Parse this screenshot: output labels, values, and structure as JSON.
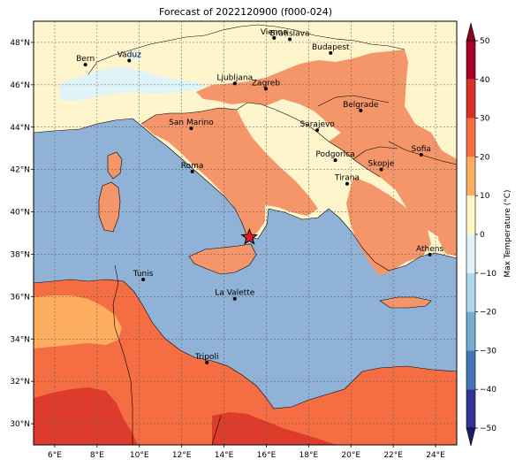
{
  "title": "Forecast of 2022120900 (f000-024)",
  "map": {
    "lon_range": [
      5,
      25
    ],
    "lat_range": [
      29,
      49
    ],
    "lon_ticks": [
      {
        "value": 6,
        "label": "6°E"
      },
      {
        "value": 8,
        "label": "8°E"
      },
      {
        "value": 10,
        "label": "10°E"
      },
      {
        "value": 12,
        "label": "12°E"
      },
      {
        "value": 14,
        "label": "14°E"
      },
      {
        "value": 16,
        "label": "16°E"
      },
      {
        "value": 18,
        "label": "18°E"
      },
      {
        "value": 20,
        "label": "20°E"
      },
      {
        "value": 22,
        "label": "22°E"
      },
      {
        "value": 24,
        "label": "24°E"
      }
    ],
    "lat_ticks": [
      {
        "value": 48,
        "label": "48°N"
      },
      {
        "value": 46,
        "label": "46°N"
      },
      {
        "value": 44,
        "label": "44°N"
      },
      {
        "value": 42,
        "label": "42°N"
      },
      {
        "value": 40,
        "label": "40°N"
      },
      {
        "value": 38,
        "label": "38°N"
      },
      {
        "value": 36,
        "label": "36°N"
      },
      {
        "value": 34,
        "label": "34°N"
      },
      {
        "value": 32,
        "label": "32°N"
      },
      {
        "value": 30,
        "label": "30°N"
      }
    ],
    "grid": true,
    "marker": {
      "symbol": "star",
      "lon": 15.2,
      "lat": 38.8,
      "color": "#e02020"
    },
    "cities": [
      {
        "name": "Bern",
        "lon": 7.45,
        "lat": 46.95
      },
      {
        "name": "Vaduz",
        "lon": 9.52,
        "lat": 47.14
      },
      {
        "name": "Vienna",
        "lon": 16.37,
        "lat": 48.21
      },
      {
        "name": "Bratislava",
        "lon": 17.11,
        "lat": 48.15
      },
      {
        "name": "Budapest",
        "lon": 19.04,
        "lat": 47.5
      },
      {
        "name": "Ljubljana",
        "lon": 14.51,
        "lat": 46.06
      },
      {
        "name": "Zagreb",
        "lon": 15.98,
        "lat": 45.81
      },
      {
        "name": "Belgrade",
        "lon": 20.46,
        "lat": 44.79
      },
      {
        "name": "San Marino",
        "lon": 12.45,
        "lat": 43.94
      },
      {
        "name": "Sarajevo",
        "lon": 18.41,
        "lat": 43.86
      },
      {
        "name": "Sofia",
        "lon": 23.32,
        "lat": 42.7
      },
      {
        "name": "Podgorica",
        "lon": 19.26,
        "lat": 42.44
      },
      {
        "name": "Skopje",
        "lon": 21.43,
        "lat": 42.0
      },
      {
        "name": "Roma",
        "lon": 12.5,
        "lat": 41.9
      },
      {
        "name": "Tirana",
        "lon": 19.82,
        "lat": 41.33
      },
      {
        "name": "Athens",
        "lon": 23.73,
        "lat": 37.98
      },
      {
        "name": "Tunis",
        "lon": 10.18,
        "lat": 36.81
      },
      {
        "name": "La Valette",
        "lon": 14.51,
        "lat": 35.9
      },
      {
        "name": "Tripoli",
        "lon": 13.19,
        "lat": 32.89
      }
    ]
  },
  "colorbar": {
    "label": "Max Temperature (°C)",
    "ticks": [
      {
        "value": 50,
        "label": "50"
      },
      {
        "value": 40,
        "label": "40"
      },
      {
        "value": 30,
        "label": "30"
      },
      {
        "value": 20,
        "label": "20"
      },
      {
        "value": 10,
        "label": "10"
      },
      {
        "value": 0,
        "label": "0"
      },
      {
        "value": -10,
        "label": "−10"
      },
      {
        "value": -20,
        "label": "−20"
      },
      {
        "value": -30,
        "label": "−30"
      },
      {
        "value": -40,
        "label": "−40"
      },
      {
        "value": -50,
        "label": "−50"
      }
    ],
    "bands": [
      {
        "from": 40,
        "to": 50,
        "color": "#a50026"
      },
      {
        "from": 30,
        "to": 40,
        "color": "#d73027"
      },
      {
        "from": 20,
        "to": 30,
        "color": "#f46d43"
      },
      {
        "from": 10,
        "to": 20,
        "color": "#fdae61"
      },
      {
        "from": 0,
        "to": 10,
        "color": "#fff7c8"
      },
      {
        "from": -10,
        "to": 0,
        "color": "#e0f3f8"
      },
      {
        "from": -20,
        "to": -10,
        "color": "#abd9e9"
      },
      {
        "from": -30,
        "to": -20,
        "color": "#74add1"
      },
      {
        "from": -40,
        "to": -30,
        "color": "#4575b4"
      },
      {
        "from": -50,
        "to": -40,
        "color": "#313695"
      }
    ],
    "over_color": "#8b0020",
    "under_color": "#1c1f6b"
  },
  "fields": {
    "sea_color": "#8fb2d6",
    "warm_color": "#f4956a",
    "hot_color": "#f46d43",
    "hotter_color": "#dd3c2d",
    "mild_color": "#fff5cc",
    "cool_color": "#e0f3f8"
  }
}
